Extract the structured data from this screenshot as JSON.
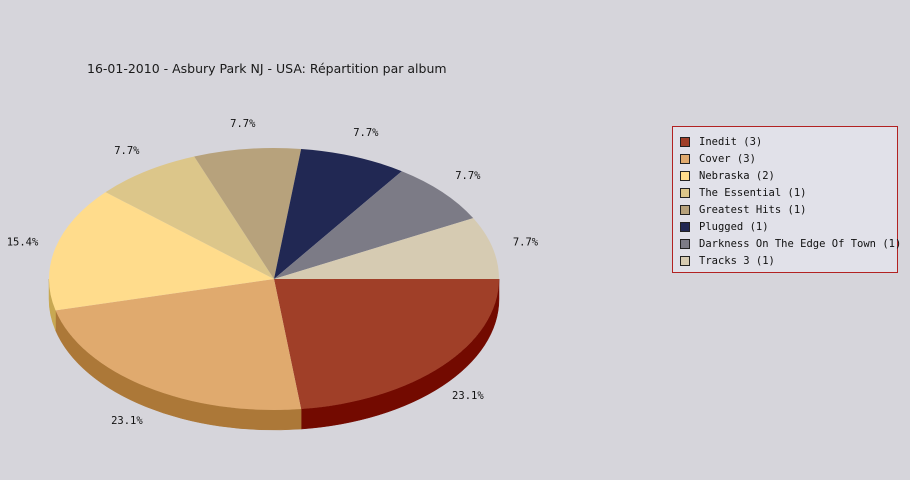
{
  "chart_data": {
    "type": "pie",
    "title": "16-01-2010 - Asbury Park NJ - USA:  Répartition par album",
    "slices": [
      {
        "label": "Inedit (3)",
        "value": 3,
        "pct": "23.1%",
        "color": "#a03f28",
        "side": "#730a00"
      },
      {
        "label": "Cover (3)",
        "value": 3,
        "pct": "23.1%",
        "color": "#e0aa6e",
        "side": "#ac7838"
      },
      {
        "label": "Nebraska (2)",
        "value": 2,
        "pct": "15.4%",
        "color": "#ffdc8c",
        "side": "#c8a852"
      },
      {
        "label": "The Essential (1)",
        "value": 1,
        "pct": "7.7%",
        "color": "#dcc68a",
        "side": "#a89458"
      },
      {
        "label": "Greatest Hits (1)",
        "value": 1,
        "pct": "7.7%",
        "color": "#b7a27c",
        "side": "#85714d"
      },
      {
        "label": "Plugged (1)",
        "value": 1,
        "pct": "7.7%",
        "color": "#212853",
        "side": "#0f1430"
      },
      {
        "label": "Darkness On The Edge Of Town (1)",
        "value": 1,
        "pct": "7.7%",
        "color": "#7c7b86",
        "side": "#55545e"
      },
      {
        "label": "Tracks 3 (1)",
        "value": 1,
        "pct": "7.7%",
        "color": "#d6cbb2",
        "side": "#a89c82"
      }
    ],
    "legend_position": "right"
  }
}
